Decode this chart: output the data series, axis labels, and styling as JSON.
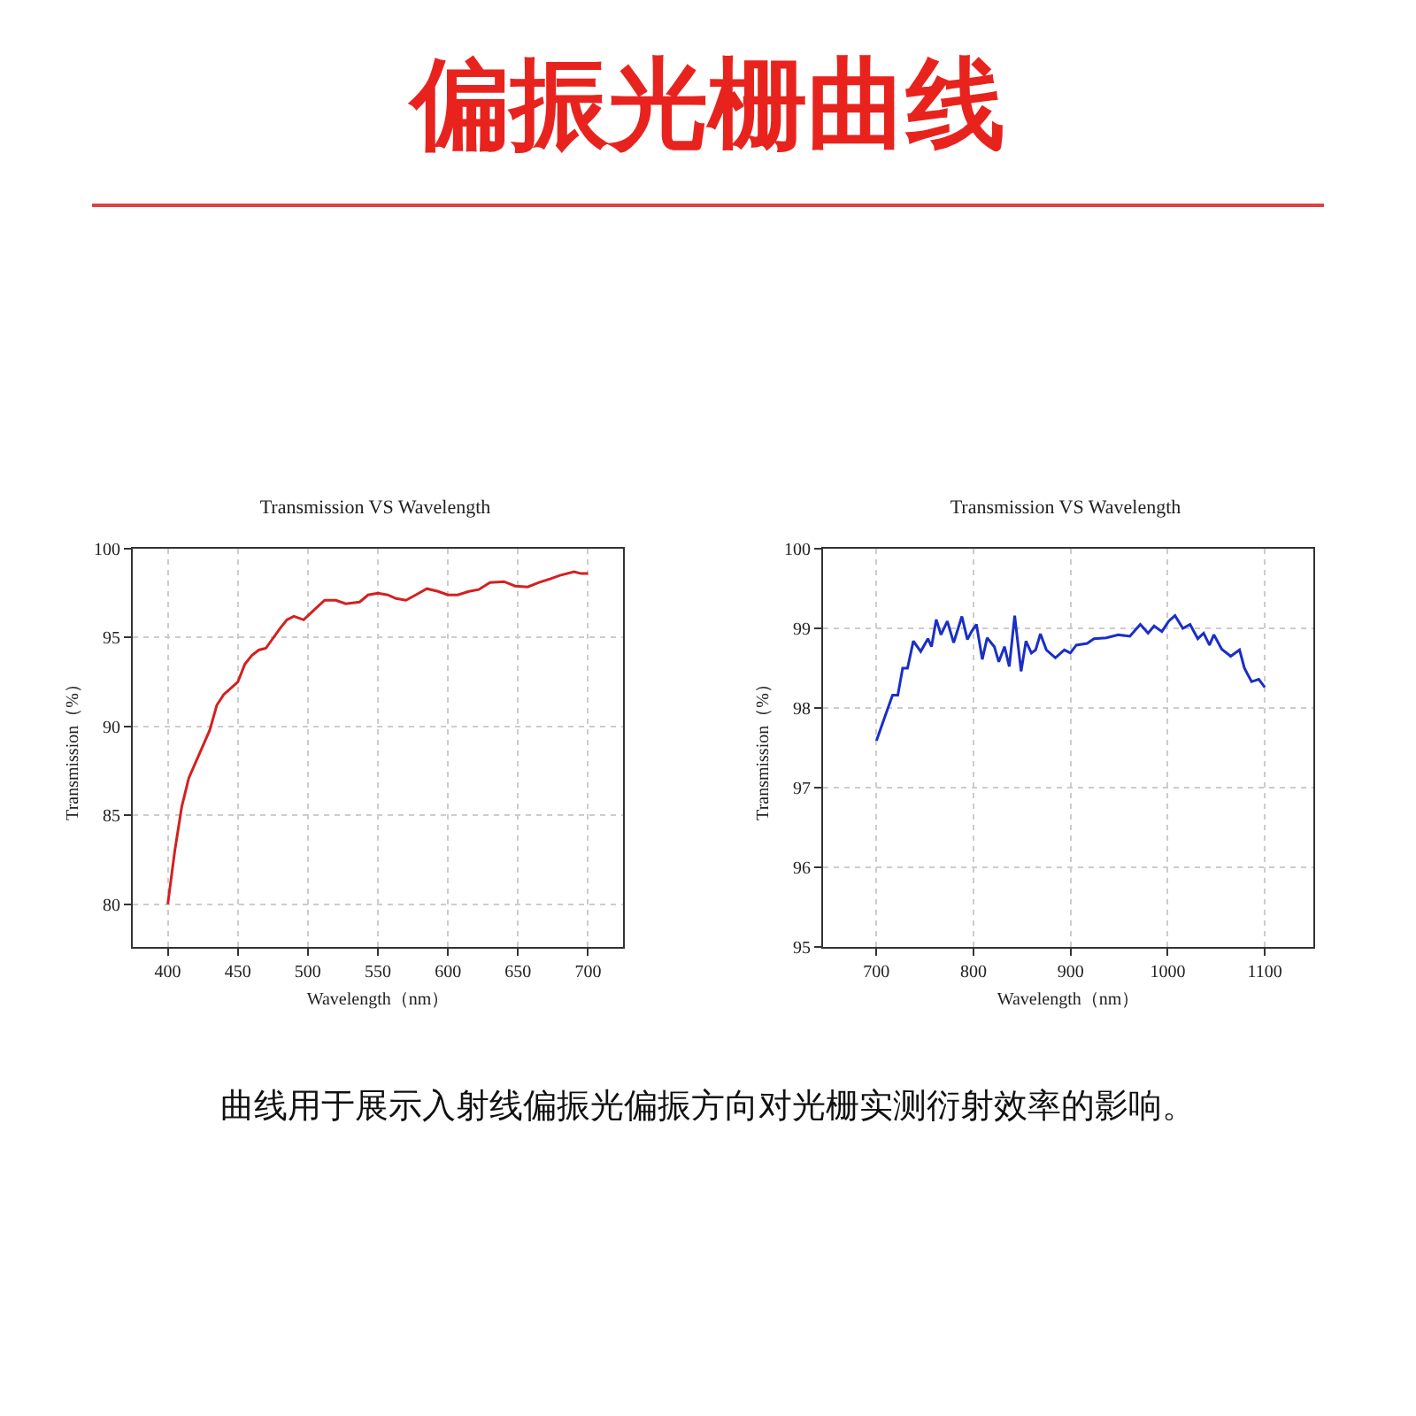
{
  "chart_data": [
    {
      "type": "other",
      "title": "偏振光栅曲线",
      "annotations": [
        "曲线用于展示入射线偏振光偏振方向对光栅实测衍射效率的影响。"
      ]
    },
    {
      "type": "line",
      "title": "Transmission VS Wavelength",
      "xlabel": "Wavelength（nm）",
      "ylabel": "Transmission（%）",
      "x": [
        400,
        405,
        410,
        415,
        420,
        430,
        435,
        440,
        450,
        455,
        460,
        465,
        470,
        480,
        485,
        490,
        497,
        505,
        512,
        520,
        527,
        537,
        543,
        550,
        557,
        563,
        570,
        577,
        585,
        593,
        600,
        607,
        615,
        622,
        630,
        640,
        648,
        657,
        665,
        673,
        680,
        690,
        695,
        700
      ],
      "series": [
        {
          "color": "#d42020",
          "values": [
            80.0,
            83.0,
            85.5,
            87.1,
            88.0,
            89.8,
            91.2,
            91.8,
            92.5,
            93.5,
            94.0,
            94.3,
            94.4,
            95.5,
            96.0,
            96.2,
            96.0,
            96.6,
            97.1,
            97.1,
            96.9,
            97.0,
            97.4,
            97.5,
            97.4,
            97.2,
            97.1,
            97.4,
            97.75,
            97.6,
            97.4,
            97.4,
            97.6,
            97.7,
            98.1,
            98.15,
            97.9,
            97.85,
            98.1,
            98.3,
            98.5,
            98.7,
            98.6,
            98.6
          ]
        }
      ],
      "xlim": [
        375,
        725
      ],
      "ylim": [
        77.6,
        100
      ],
      "xticks": [
        400,
        450,
        500,
        550,
        600,
        650,
        700
      ],
      "yticks": [
        80,
        85,
        90,
        95,
        100
      ],
      "grid": true
    },
    {
      "type": "line",
      "title": "Transmission VS Wavelength",
      "xlabel": "Wavelength（nm）",
      "ylabel": "Transmission（%）",
      "x": [
        700,
        705.5,
        713,
        716.6,
        722,
        727,
        732,
        738,
        745.6,
        753,
        756.7,
        761.6,
        766.5,
        773,
        779.5,
        788,
        793.7,
        798,
        803,
        809,
        814,
        821.4,
        826,
        831.9,
        836.8,
        842.4,
        849,
        854,
        859.6,
        864,
        868.9,
        875,
        884.3,
        893.5,
        899.7,
        905.9,
        917,
        924,
        936.7,
        949,
        961,
        971.8,
        979.8,
        986,
        994,
        1001,
        1007.5,
        1015.6,
        1023,
        1031,
        1037,
        1043,
        1047.6,
        1055.6,
        1064.9,
        1074,
        1079,
        1086.4,
        1093.8,
        1100
      ],
      "series": [
        {
          "color": "#1a2ec8",
          "values": [
            97.59,
            97.78,
            98.04,
            98.16,
            98.16,
            98.5,
            98.5,
            98.84,
            98.71,
            98.87,
            98.77,
            99.11,
            98.92,
            99.09,
            98.82,
            99.15,
            98.86,
            98.96,
            99.05,
            98.61,
            98.88,
            98.77,
            98.58,
            98.77,
            98.52,
            99.16,
            98.46,
            98.84,
            98.69,
            98.73,
            98.93,
            98.73,
            98.63,
            98.73,
            98.69,
            98.79,
            98.81,
            98.87,
            98.88,
            98.92,
            98.9,
            99.05,
            98.94,
            99.03,
            98.96,
            99.09,
            99.16,
            99.0,
            99.05,
            98.87,
            98.94,
            98.79,
            98.92,
            98.74,
            98.65,
            98.73,
            98.5,
            98.33,
            98.36,
            98.26
          ]
        }
      ],
      "xlim": [
        645,
        1150
      ],
      "ylim": [
        95,
        100
      ],
      "xticks": [
        700,
        800,
        900,
        1000,
        1100
      ],
      "yticks": [
        95,
        96,
        97,
        98,
        99,
        100
      ],
      "grid": true
    }
  ]
}
